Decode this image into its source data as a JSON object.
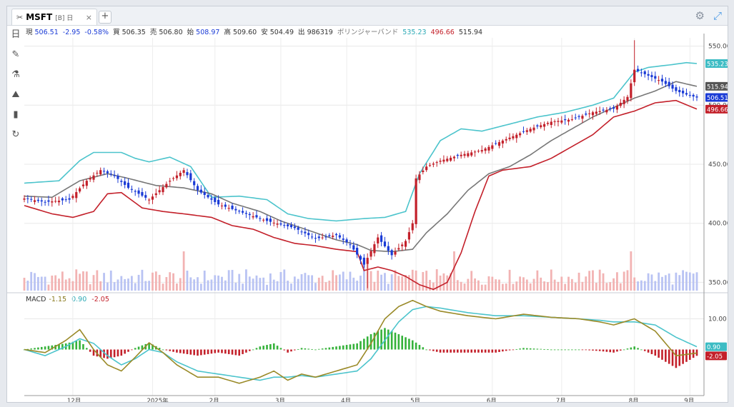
{
  "tab": {
    "symbol": "MSFT",
    "sub": "[B] 日",
    "close": "×",
    "new": "+"
  },
  "icons": {
    "pin": "pin-icon",
    "settings": "gear-icon",
    "expand": "expand-icon"
  },
  "sidebar": [
    {
      "name": "period-icon",
      "glyph": "日"
    },
    {
      "name": "draw-icon",
      "glyph": "✎"
    },
    {
      "name": "indicator-icon",
      "glyph": "⚗"
    },
    {
      "name": "chart-type-icon",
      "glyph": "⛰"
    },
    {
      "name": "volume-icon",
      "glyph": "▮"
    },
    {
      "name": "refresh-icon",
      "glyph": "↻"
    }
  ],
  "info": {
    "now_label": "現",
    "now": "506.51",
    "chg": "-2.95",
    "chg_pct": "-0.58%",
    "bid_label": "買",
    "bid": "506.35",
    "ask_label": "売",
    "ask": "506.80",
    "open_label": "始",
    "open": "508.97",
    "high_label": "高",
    "high": "509.60",
    "low_label": "安",
    "low": "504.49",
    "vol_label": "出",
    "vol": "986319",
    "bb_label": "ボリンジャーバンド",
    "bb_upper": "535.23",
    "bb_lower": "496.66",
    "bb_mid": "515.94"
  },
  "macd_info": {
    "label": "MACD",
    "macd": "-1.15",
    "signal": "0.90",
    "hist": "-2.05"
  },
  "colors": {
    "up": "#c3202a",
    "down": "#1a3bd6",
    "upper": "#4cc4cc",
    "mid": "#777777",
    "lower": "#c3202a",
    "macd": "#9a8a28",
    "signal": "#4cc4cc",
    "hist_pos": "#35b23a",
    "hist_neg": "#c3202a"
  },
  "chart_data": {
    "type": "candlestick",
    "x_ticks": [
      "12月",
      "2025年",
      "2月",
      "3月",
      "4月",
      "5月",
      "6月",
      "7月",
      "8月",
      "9月"
    ],
    "price_axis": {
      "ticks": [
        350,
        400,
        450,
        500,
        550
      ],
      "tick_labels": [
        "350.00",
        "400.00",
        "450.00",
        "500.00",
        "550.00"
      ],
      "ylim": [
        343,
        557
      ]
    },
    "markers": {
      "upper": "535.23",
      "mid": "515.94",
      "last": "506.51",
      "lower": "496.66"
    },
    "macd_axis": {
      "ticks": [
        10
      ],
      "tick_labels": [
        "10.00"
      ],
      "ylim": [
        -15,
        15
      ],
      "markers": {
        "signal": "0.90",
        "hist": "-2.05"
      }
    },
    "close_anchors": [
      [
        0,
        421
      ],
      [
        6,
        418
      ],
      [
        13,
        420
      ],
      [
        18,
        436
      ],
      [
        22,
        445
      ],
      [
        26,
        440
      ],
      [
        30,
        430
      ],
      [
        36,
        420
      ],
      [
        42,
        436
      ],
      [
        46,
        445
      ],
      [
        50,
        428
      ],
      [
        56,
        416
      ],
      [
        62,
        410
      ],
      [
        70,
        402
      ],
      [
        78,
        396
      ],
      [
        84,
        387
      ],
      [
        90,
        390
      ],
      [
        94,
        382
      ],
      [
        98,
        365
      ],
      [
        102,
        388
      ],
      [
        106,
        373
      ],
      [
        110,
        385
      ],
      [
        112,
        400
      ],
      [
        113,
        438
      ],
      [
        116,
        448
      ],
      [
        120,
        453
      ],
      [
        126,
        458
      ],
      [
        132,
        462
      ],
      [
        138,
        470
      ],
      [
        146,
        480
      ],
      [
        152,
        486
      ],
      [
        158,
        488
      ],
      [
        164,
        494
      ],
      [
        170,
        497
      ],
      [
        174,
        507
      ],
      [
        176,
        530
      ],
      [
        180,
        525
      ],
      [
        184,
        520
      ],
      [
        188,
        512
      ],
      [
        191,
        509
      ],
      [
        194,
        506.5
      ]
    ],
    "bb_upper_anchors": [
      [
        0,
        434
      ],
      [
        10,
        436
      ],
      [
        16,
        453
      ],
      [
        20,
        460
      ],
      [
        24,
        460
      ],
      [
        28,
        460
      ],
      [
        32,
        455
      ],
      [
        36,
        452
      ],
      [
        42,
        456
      ],
      [
        48,
        448
      ],
      [
        54,
        422
      ],
      [
        62,
        423
      ],
      [
        70,
        420
      ],
      [
        76,
        408
      ],
      [
        82,
        404
      ],
      [
        90,
        402
      ],
      [
        98,
        404
      ],
      [
        104,
        405
      ],
      [
        110,
        410
      ],
      [
        114,
        442
      ],
      [
        120,
        470
      ],
      [
        126,
        480
      ],
      [
        132,
        478
      ],
      [
        140,
        484
      ],
      [
        148,
        490
      ],
      [
        156,
        494
      ],
      [
        164,
        500
      ],
      [
        170,
        506
      ],
      [
        176,
        528
      ],
      [
        180,
        532
      ],
      [
        186,
        534
      ],
      [
        191,
        536
      ],
      [
        194,
        535.23
      ]
    ],
    "bb_mid_anchors": [
      [
        0,
        423
      ],
      [
        8,
        422
      ],
      [
        16,
        436
      ],
      [
        24,
        442
      ],
      [
        30,
        438
      ],
      [
        38,
        432
      ],
      [
        46,
        430
      ],
      [
        54,
        425
      ],
      [
        60,
        417
      ],
      [
        68,
        410
      ],
      [
        74,
        402
      ],
      [
        82,
        394
      ],
      [
        90,
        386
      ],
      [
        96,
        382
      ],
      [
        100,
        377
      ],
      [
        106,
        376
      ],
      [
        112,
        378
      ],
      [
        116,
        392
      ],
      [
        122,
        408
      ],
      [
        128,
        428
      ],
      [
        134,
        442
      ],
      [
        140,
        448
      ],
      [
        146,
        458
      ],
      [
        152,
        470
      ],
      [
        158,
        480
      ],
      [
        164,
        490
      ],
      [
        170,
        498
      ],
      [
        176,
        506
      ],
      [
        182,
        512
      ],
      [
        188,
        520
      ],
      [
        194,
        515.94
      ]
    ],
    "bb_lower_anchors": [
      [
        0,
        415
      ],
      [
        8,
        408
      ],
      [
        14,
        405
      ],
      [
        20,
        410
      ],
      [
        24,
        425
      ],
      [
        28,
        426
      ],
      [
        34,
        413
      ],
      [
        40,
        410
      ],
      [
        46,
        408
      ],
      [
        54,
        405
      ],
      [
        60,
        398
      ],
      [
        66,
        395
      ],
      [
        72,
        388
      ],
      [
        78,
        383
      ],
      [
        84,
        381
      ],
      [
        90,
        378
      ],
      [
        96,
        376
      ],
      [
        98,
        360
      ],
      [
        102,
        363
      ],
      [
        106,
        360
      ],
      [
        110,
        355
      ],
      [
        114,
        348
      ],
      [
        118,
        344
      ],
      [
        122,
        350
      ],
      [
        126,
        375
      ],
      [
        130,
        410
      ],
      [
        134,
        440
      ],
      [
        138,
        445
      ],
      [
        146,
        448
      ],
      [
        152,
        455
      ],
      [
        158,
        465
      ],
      [
        164,
        475
      ],
      [
        170,
        490
      ],
      [
        176,
        495
      ],
      [
        182,
        502
      ],
      [
        188,
        504
      ],
      [
        194,
        496.66
      ]
    ],
    "macd_anchors": [
      [
        0,
        0
      ],
      [
        6,
        -1
      ],
      [
        12,
        3
      ],
      [
        16,
        6.5
      ],
      [
        20,
        0
      ],
      [
        24,
        -5
      ],
      [
        28,
        -7
      ],
      [
        32,
        -2.5
      ],
      [
        36,
        2.2
      ],
      [
        40,
        -1
      ],
      [
        44,
        -5
      ],
      [
        50,
        -9
      ],
      [
        56,
        -9
      ],
      [
        62,
        -11
      ],
      [
        68,
        -9
      ],
      [
        72,
        -7
      ],
      [
        76,
        -10
      ],
      [
        80,
        -8
      ],
      [
        84,
        -9
      ],
      [
        90,
        -7
      ],
      [
        96,
        -5
      ],
      [
        100,
        2
      ],
      [
        104,
        10
      ],
      [
        108,
        14
      ],
      [
        112,
        16
      ],
      [
        116,
        14
      ],
      [
        120,
        12.5
      ],
      [
        128,
        11
      ],
      [
        136,
        10
      ],
      [
        144,
        11.5
      ],
      [
        152,
        10.5
      ],
      [
        160,
        10
      ],
      [
        166,
        9
      ],
      [
        170,
        8
      ],
      [
        176,
        10
      ],
      [
        182,
        6
      ],
      [
        188,
        -2
      ],
      [
        194,
        -1.15
      ]
    ],
    "signal_anchors": [
      [
        0,
        0
      ],
      [
        6,
        -2
      ],
      [
        12,
        1
      ],
      [
        16,
        3.5
      ],
      [
        20,
        2
      ],
      [
        24,
        -2
      ],
      [
        28,
        -5
      ],
      [
        32,
        -3
      ],
      [
        36,
        0
      ],
      [
        40,
        -1
      ],
      [
        44,
        -4
      ],
      [
        50,
        -7
      ],
      [
        56,
        -8
      ],
      [
        62,
        -9
      ],
      [
        68,
        -10
      ],
      [
        72,
        -9
      ],
      [
        76,
        -9
      ],
      [
        80,
        -8.5
      ],
      [
        84,
        -9
      ],
      [
        90,
        -8
      ],
      [
        96,
        -7
      ],
      [
        100,
        -3
      ],
      [
        104,
        3
      ],
      [
        108,
        9
      ],
      [
        112,
        13
      ],
      [
        116,
        14
      ],
      [
        120,
        13.5
      ],
      [
        128,
        12
      ],
      [
        136,
        11
      ],
      [
        144,
        11
      ],
      [
        152,
        10.5
      ],
      [
        160,
        10
      ],
      [
        166,
        9.5
      ],
      [
        170,
        9
      ],
      [
        176,
        9
      ],
      [
        182,
        8
      ],
      [
        188,
        4
      ],
      [
        194,
        0.9
      ]
    ]
  }
}
